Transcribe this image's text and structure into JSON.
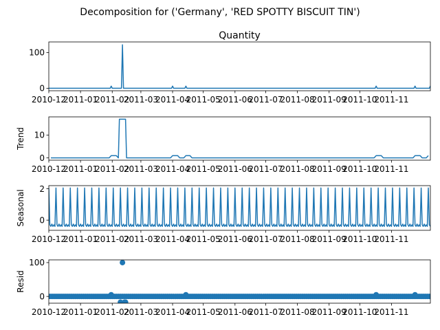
{
  "figure": {
    "suptitle": "Decomposition for ('Germany', 'RED SPOTTY BISCUIT TIN')"
  },
  "colors": {
    "series": "#1f77b4",
    "axes": "#000000"
  },
  "chart_data": [
    {
      "type": "line",
      "title": "Quantity",
      "ylabel": "",
      "ylim": [
        -7,
        130
      ],
      "yticks": [
        0,
        100
      ],
      "xlim": [
        "2010-12-01",
        "2011-12-09"
      ],
      "xtick_labels": [
        "2010-12",
        "2011-01",
        "2011-02",
        "2011-03",
        "2011-04",
        "2011-05",
        "2011-06",
        "2011-07",
        "2011-08",
        "2011-09",
        "2011-10",
        "2011-11"
      ],
      "baseline": 0,
      "spikes": [
        {
          "x": "2011-01-31",
          "y": 6
        },
        {
          "x": "2011-02-11",
          "y": 122
        },
        {
          "x": "2011-04-01",
          "y": 6
        },
        {
          "x": "2011-04-14",
          "y": 6
        },
        {
          "x": "2011-10-17",
          "y": 6
        },
        {
          "x": "2011-11-24",
          "y": 6
        },
        {
          "x": "2011-12-09",
          "y": 6
        }
      ]
    },
    {
      "type": "line",
      "title": "",
      "ylabel": "Trend",
      "ylim": [
        -1,
        18
      ],
      "yticks": [
        0,
        10
      ],
      "xlim": [
        "2010-12-01",
        "2011-12-09"
      ],
      "xtick_labels": [
        "2010-12",
        "2011-01",
        "2011-02",
        "2011-03",
        "2011-04",
        "2011-05",
        "2011-06",
        "2011-07",
        "2011-08",
        "2011-09",
        "2011-10",
        "2011-11"
      ],
      "points": [
        {
          "x": "2010-12-03",
          "y": 0
        },
        {
          "x": "2011-01-29",
          "y": 0
        },
        {
          "x": "2011-01-31",
          "y": 1
        },
        {
          "x": "2011-02-05",
          "y": 1
        },
        {
          "x": "2011-02-07",
          "y": 0
        },
        {
          "x": "2011-02-08",
          "y": 17
        },
        {
          "x": "2011-02-14",
          "y": 17
        },
        {
          "x": "2011-02-15",
          "y": 0
        },
        {
          "x": "2011-03-30",
          "y": 0
        },
        {
          "x": "2011-04-01",
          "y": 1
        },
        {
          "x": "2011-04-06",
          "y": 1
        },
        {
          "x": "2011-04-08",
          "y": 0
        },
        {
          "x": "2011-04-12",
          "y": 0
        },
        {
          "x": "2011-04-14",
          "y": 1
        },
        {
          "x": "2011-04-18",
          "y": 1
        },
        {
          "x": "2011-04-20",
          "y": 0
        },
        {
          "x": "2011-10-15",
          "y": 0
        },
        {
          "x": "2011-10-17",
          "y": 1
        },
        {
          "x": "2011-10-22",
          "y": 1
        },
        {
          "x": "2011-10-24",
          "y": 0
        },
        {
          "x": "2011-11-22",
          "y": 0
        },
        {
          "x": "2011-11-24",
          "y": 1
        },
        {
          "x": "2011-11-29",
          "y": 1
        },
        {
          "x": "2011-12-01",
          "y": 0
        },
        {
          "x": "2011-12-05",
          "y": 0
        },
        {
          "x": "2011-12-07",
          "y": 1
        }
      ]
    },
    {
      "type": "line",
      "title": "",
      "ylabel": "Seasonal",
      "ylim": [
        -0.65,
        2.2
      ],
      "yticks": [
        0,
        2
      ],
      "xlim": [
        "2010-12-01",
        "2011-12-09"
      ],
      "xtick_labels": [
        "2010-12",
        "2011-01",
        "2011-02",
        "2011-03",
        "2011-04",
        "2011-05",
        "2011-06",
        "2011-07",
        "2011-08",
        "2011-09",
        "2011-10",
        "2011-11"
      ],
      "period_days": 7,
      "start": "2010-12-01",
      "cycle": [
        2.05,
        -0.3,
        -0.4,
        -0.25,
        -0.4,
        -0.3,
        -0.4
      ]
    },
    {
      "type": "scatter",
      "title": "",
      "ylabel": "Resid",
      "ylim": [
        -20,
        108
      ],
      "yticks": [
        0,
        100
      ],
      "xlim": [
        "2010-12-01",
        "2011-12-09"
      ],
      "xtick_labels": [
        "2010-12",
        "2011-01",
        "2011-02",
        "2011-03",
        "2011-04",
        "2011-05",
        "2011-06",
        "2011-07",
        "2011-08",
        "2011-09",
        "2011-10",
        "2011-11"
      ],
      "start": "2010-12-01",
      "end": "2011-12-09",
      "step_days": 2,
      "baseline": 0,
      "outliers": [
        {
          "x": "2011-02-11",
          "y": 100
        },
        {
          "x": "2011-02-09",
          "y": -17
        },
        {
          "x": "2011-02-13",
          "y": -17
        },
        {
          "x": "2011-02-14",
          "y": -17
        },
        {
          "x": "2011-01-31",
          "y": 5
        },
        {
          "x": "2011-04-14",
          "y": 5
        },
        {
          "x": "2011-10-17",
          "y": 5
        },
        {
          "x": "2011-11-24",
          "y": 5
        }
      ]
    }
  ]
}
